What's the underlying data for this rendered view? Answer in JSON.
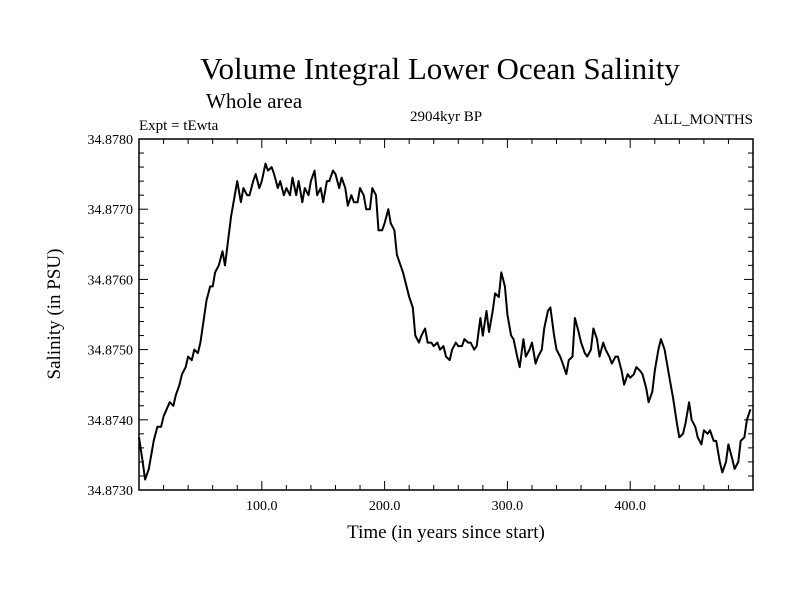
{
  "header": {
    "title": "Volume Integral Lower Ocean Salinity",
    "subtitle": "Whole area",
    "experiment": "Expt = tEwta",
    "period": "2904kyr BP",
    "months": "ALL_MONTHS"
  },
  "chart_data": {
    "type": "line",
    "title": "Volume Integral Lower Ocean Salinity",
    "xlabel": "Time (in years since start)",
    "ylabel": "Salinity (in PSU)",
    "xlim": [
      0,
      500
    ],
    "ylim": [
      34.873,
      34.878
    ],
    "x_ticks": [
      100,
      200,
      300,
      400
    ],
    "x_tick_labels": [
      "100.0",
      "200.0",
      "300.0",
      "400.0"
    ],
    "y_ticks": [
      34.873,
      34.874,
      34.875,
      34.876,
      34.877,
      34.878
    ],
    "y_tick_labels": [
      "34.8730",
      "34.8740",
      "34.8750",
      "34.8760",
      "34.8770",
      "34.8780"
    ],
    "grid": false,
    "series": [
      {
        "name": "Salinity",
        "color": "#000000",
        "x": [
          0,
          3,
          5,
          8,
          12,
          15,
          18,
          20,
          25,
          28,
          30,
          33,
          35,
          38,
          40,
          43,
          45,
          48,
          50,
          55,
          58,
          60,
          62,
          65,
          68,
          70,
          75,
          78,
          80,
          83,
          85,
          88,
          90,
          93,
          95,
          98,
          100,
          103,
          105,
          108,
          110,
          113,
          115,
          118,
          120,
          123,
          125,
          128,
          130,
          133,
          135,
          138,
          140,
          143,
          145,
          148,
          150,
          153,
          155,
          158,
          160,
          163,
          165,
          168,
          170,
          173,
          175,
          178,
          180,
          183,
          185,
          188,
          190,
          193,
          195,
          198,
          200,
          203,
          205,
          208,
          210,
          215,
          220,
          223,
          225,
          228,
          230,
          233,
          235,
          238,
          240,
          243,
          245,
          248,
          250,
          253,
          255,
          258,
          260,
          263,
          265,
          268,
          270,
          273,
          275,
          278,
          280,
          283,
          285,
          288,
          290,
          293,
          295,
          298,
          300,
          303,
          305,
          308,
          310,
          313,
          315,
          318,
          320,
          323,
          325,
          328,
          330,
          333,
          335,
          338,
          340,
          343,
          345,
          348,
          350,
          353,
          355,
          358,
          360,
          363,
          365,
          368,
          370,
          373,
          375,
          378,
          380,
          383,
          385,
          388,
          390,
          393,
          395,
          398,
          400,
          403,
          405,
          408,
          410,
          413,
          415,
          418,
          420,
          423,
          425,
          428,
          430,
          433,
          435,
          438,
          440,
          443,
          445,
          448,
          450,
          453,
          455,
          458,
          460,
          463,
          465,
          468,
          470,
          473,
          475,
          478,
          480,
          483,
          485,
          488,
          490,
          493,
          495,
          498
        ],
        "y": [
          34.87375,
          34.8734,
          34.87315,
          34.8733,
          34.8737,
          34.8739,
          34.8739,
          34.87405,
          34.87425,
          34.8742,
          34.87435,
          34.8745,
          34.87465,
          34.87475,
          34.8749,
          34.87485,
          34.875,
          34.87495,
          34.8751,
          34.8757,
          34.8759,
          34.8759,
          34.8761,
          34.8762,
          34.8764,
          34.8762,
          34.8769,
          34.8772,
          34.8774,
          34.8771,
          34.8773,
          34.8772,
          34.8772,
          34.8774,
          34.8775,
          34.8773,
          34.8774,
          34.87765,
          34.87755,
          34.8776,
          34.8775,
          34.8773,
          34.8774,
          34.8772,
          34.8773,
          34.8772,
          34.87745,
          34.8772,
          34.8774,
          34.8771,
          34.8773,
          34.8772,
          34.8774,
          34.87755,
          34.8772,
          34.8773,
          34.8771,
          34.8774,
          34.8774,
          34.87755,
          34.8775,
          34.8773,
          34.87745,
          34.8773,
          34.87705,
          34.8772,
          34.8771,
          34.8771,
          34.8773,
          34.8772,
          34.877,
          34.877,
          34.8773,
          34.8772,
          34.8767,
          34.8767,
          34.8768,
          34.877,
          34.8768,
          34.8767,
          34.87635,
          34.8761,
          34.87575,
          34.8756,
          34.8752,
          34.8751,
          34.8752,
          34.8753,
          34.8751,
          34.8751,
          34.87505,
          34.8751,
          34.875,
          34.87505,
          34.8749,
          34.87485,
          34.875,
          34.8751,
          34.87505,
          34.87505,
          34.87515,
          34.8751,
          34.8751,
          34.875,
          34.87505,
          34.87545,
          34.8752,
          34.87555,
          34.87525,
          34.87555,
          34.8758,
          34.87575,
          34.8761,
          34.8759,
          34.8755,
          34.8752,
          34.87515,
          34.8749,
          34.87475,
          34.87515,
          34.8749,
          34.875,
          34.8751,
          34.8748,
          34.8749,
          34.875,
          34.8753,
          34.87555,
          34.8756,
          34.8752,
          34.875,
          34.8749,
          34.8748,
          34.87465,
          34.87485,
          34.8749,
          34.87545,
          34.87525,
          34.8751,
          34.87495,
          34.8749,
          34.875,
          34.8753,
          34.87515,
          34.8749,
          34.8751,
          34.875,
          34.8749,
          34.8748,
          34.8749,
          34.8749,
          34.8747,
          34.8745,
          34.87465,
          34.8746,
          34.87465,
          34.87475,
          34.8747,
          34.87465,
          34.87445,
          34.87425,
          34.8744,
          34.8747,
          34.875,
          34.87515,
          34.875,
          34.8748,
          34.8745,
          34.8743,
          34.87395,
          34.87375,
          34.8738,
          34.87395,
          34.87425,
          34.874,
          34.8739,
          34.87375,
          34.87365,
          34.87385,
          34.8738,
          34.87385,
          34.8737,
          34.8737,
          34.8734,
          34.87325,
          34.8734,
          34.87365,
          34.87345,
          34.8733,
          34.8734,
          34.8737,
          34.87375,
          34.874,
          34.87415
        ]
      }
    ]
  }
}
